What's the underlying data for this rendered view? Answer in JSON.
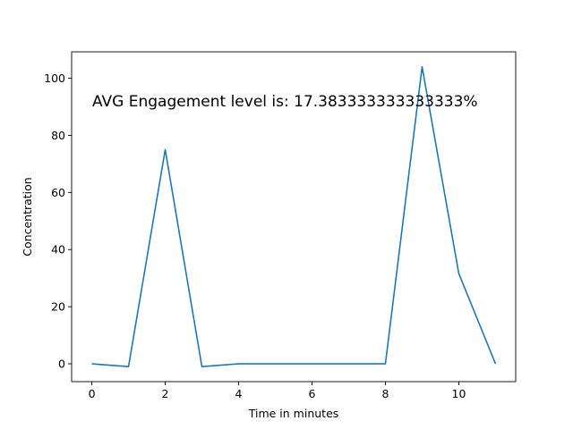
{
  "chart_data": {
    "type": "line",
    "title": "",
    "xlabel": "Time in minutes",
    "ylabel": "Concentration",
    "annotation": "AVG Engagement level is: 17.383333333333333%",
    "x": [
      0,
      1,
      2,
      3,
      4,
      5,
      6,
      7,
      8,
      9,
      10,
      11
    ],
    "series": [
      {
        "values": [
          0,
          -1,
          75,
          -1,
          0,
          0,
          0,
          0,
          0,
          104,
          31.6,
          0
        ],
        "color": "#1f77b4"
      }
    ],
    "xlim": [
      -0.55,
      11.55
    ],
    "ylim": [
      -6.25,
      109.25
    ],
    "xticks": [
      0,
      2,
      4,
      6,
      8,
      10
    ],
    "yticks": [
      0,
      20,
      40,
      60,
      80,
      100
    ],
    "grid": false,
    "legend": "none"
  }
}
